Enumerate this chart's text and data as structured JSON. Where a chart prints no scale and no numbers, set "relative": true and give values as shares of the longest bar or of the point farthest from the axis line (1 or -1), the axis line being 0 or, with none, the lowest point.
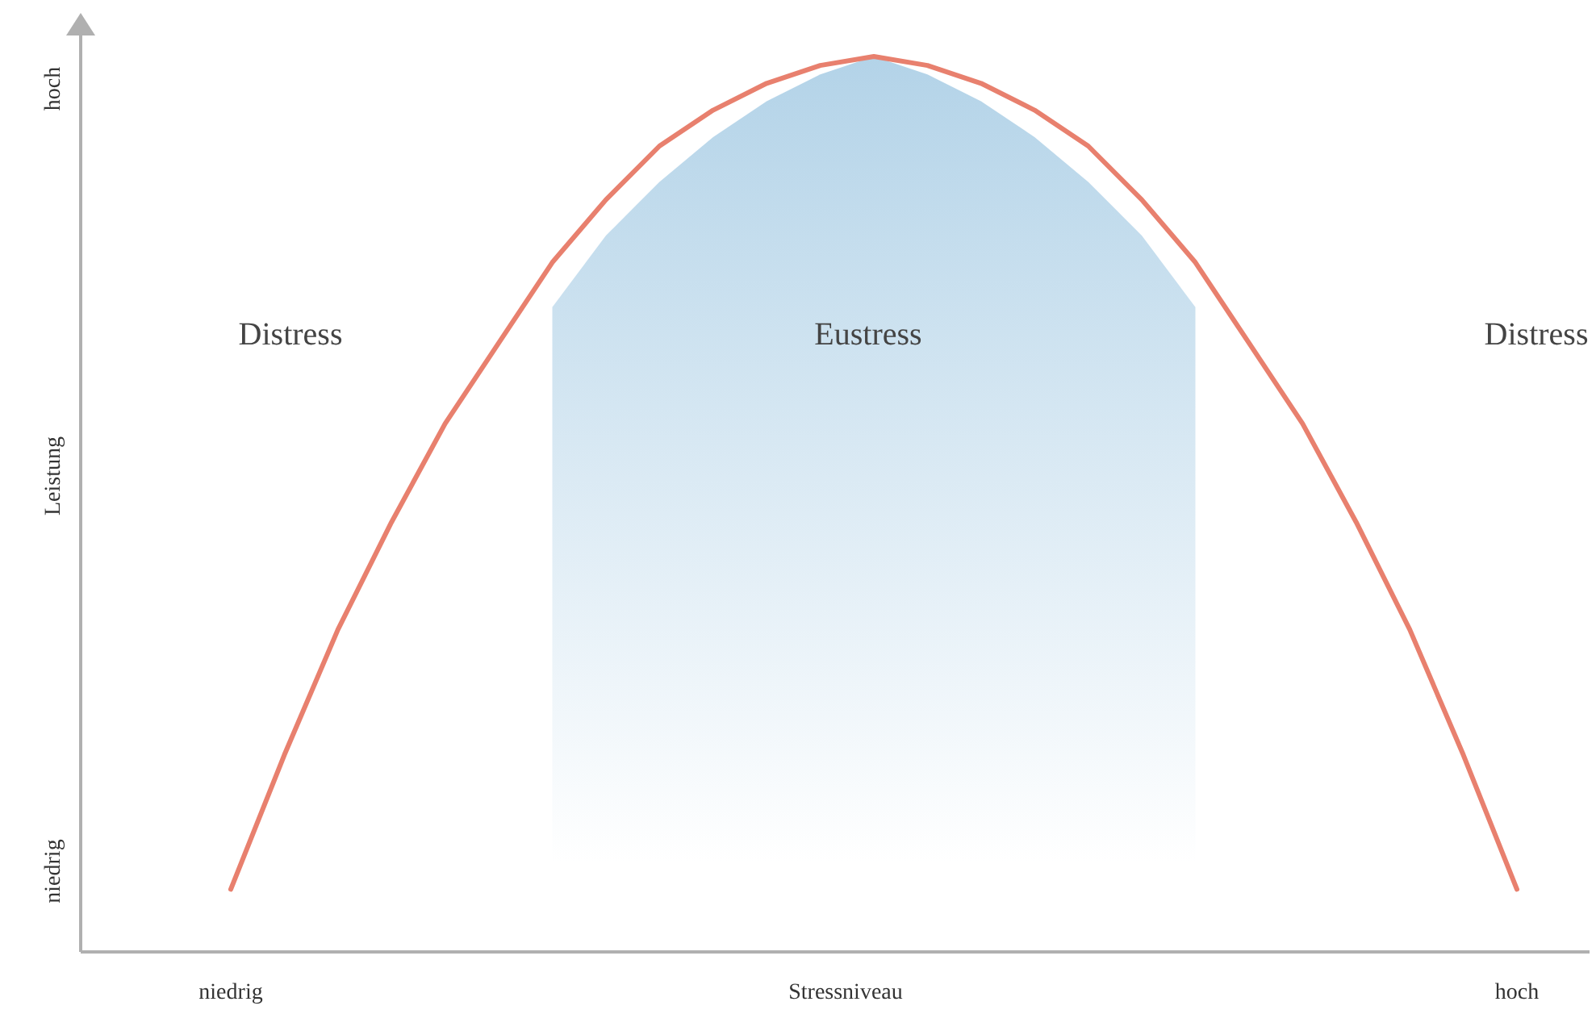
{
  "chart_data": {
    "type": "line",
    "relative": true,
    "xlabel": "Stressniveau",
    "categories": [
      "niedrig",
      null,
      null,
      null,
      null,
      null,
      null,
      null,
      null,
      null,
      null,
      null,
      null,
      null,
      null,
      null,
      null,
      null,
      null,
      null,
      null,
      null,
      null,
      null,
      "hoch"
    ],
    "series": [
      {
        "type": "area",
        "color": "#b3d3e8",
        "values": [
          null,
          null,
          null,
          null,
          null,
          null,
          0.72,
          0.8,
          0.86,
          0.91,
          0.95,
          0.98,
          1.0,
          0.98,
          0.95,
          0.91,
          0.86,
          0.8,
          0.72,
          null,
          null,
          null,
          null,
          null,
          null
        ]
      },
      {
        "color": "#e8806e",
        "values": [
          0.07,
          0.22,
          0.36,
          0.48,
          0.59,
          0.68,
          0.77,
          0.84,
          0.9,
          0.94,
          0.97,
          0.99,
          1.0,
          0.99,
          0.97,
          0.94,
          0.9,
          0.84,
          0.77,
          0.68,
          0.59,
          0.48,
          0.36,
          0.22,
          0.07
        ]
      }
    ],
    "annotations": [
      "Distress",
      "Eustress",
      "Distress",
      "niedrig",
      "hoch",
      "Leistung"
    ]
  }
}
